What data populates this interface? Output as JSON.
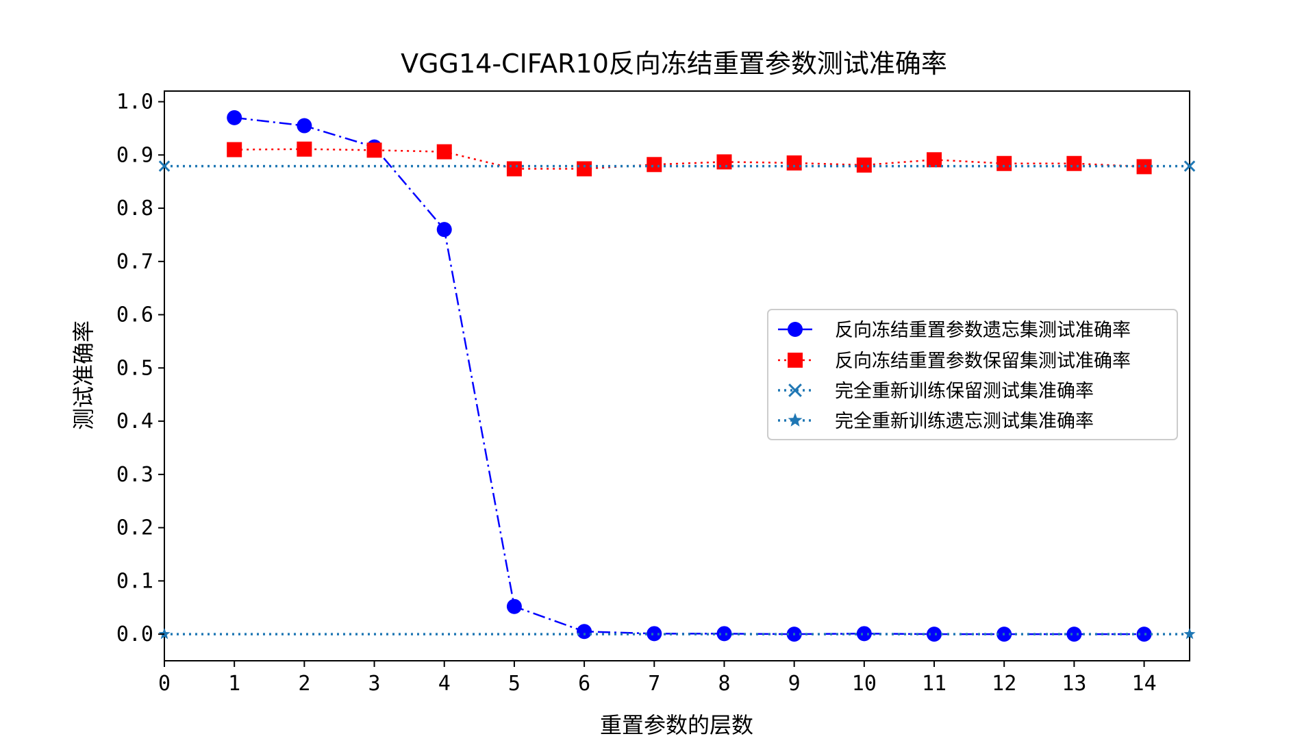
{
  "chart_data": {
    "type": "line",
    "title": "VGG14-CIFAR10反向冻结重置参数测试准确率",
    "xlabel": "重置参数的层数",
    "ylabel": "测试准确率",
    "xlim": [
      0,
      14.65
    ],
    "ylim": [
      -0.05,
      1.02
    ],
    "xticks": [
      0,
      1,
      2,
      3,
      4,
      5,
      6,
      7,
      8,
      9,
      10,
      11,
      12,
      13,
      14
    ],
    "yticks": [
      0.0,
      0.1,
      0.2,
      0.3,
      0.4,
      0.5,
      0.6,
      0.7,
      0.8,
      0.9,
      1.0
    ],
    "ytick_labels": [
      "0.0",
      "0.1",
      "0.2",
      "0.3",
      "0.4",
      "0.5",
      "0.6",
      "0.7",
      "0.8",
      "0.9",
      "1.0"
    ],
    "grid": false,
    "legend_position": "center-right",
    "series": [
      {
        "name": "反向冻结重置参数遗忘集测试准确率",
        "x": [
          1,
          2,
          3,
          4,
          5,
          6,
          7,
          8,
          9,
          10,
          11,
          12,
          13,
          14
        ],
        "values": [
          0.97,
          0.955,
          0.915,
          0.76,
          0.052,
          0.005,
          0.001,
          0.001,
          0.0,
          0.001,
          0.0,
          0.0,
          0.0,
          0.0
        ],
        "color": "#0000ff",
        "marker": "circle",
        "linestyle": "dashdot"
      },
      {
        "name": "反向冻结重置参数保留集测试准确率",
        "x": [
          1,
          2,
          3,
          4,
          5,
          6,
          7,
          8,
          9,
          10,
          11,
          12,
          13,
          14
        ],
        "values": [
          0.91,
          0.911,
          0.909,
          0.906,
          0.874,
          0.874,
          0.882,
          0.887,
          0.885,
          0.881,
          0.891,
          0.884,
          0.884,
          0.878
        ],
        "color": "#ff0000",
        "marker": "square",
        "linestyle": "dotted"
      },
      {
        "name": "完全重新训练保留测试集准确率",
        "x": [
          0,
          14.65
        ],
        "values": [
          0.879,
          0.879
        ],
        "color": "#1f77b4",
        "marker": "x",
        "linestyle": "dotted"
      },
      {
        "name": "完全重新训练遗忘测试集准确率",
        "x": [
          0,
          14.65
        ],
        "values": [
          0.0,
          0.0
        ],
        "color": "#1f77b4",
        "marker": "star",
        "linestyle": "dotted"
      }
    ]
  }
}
